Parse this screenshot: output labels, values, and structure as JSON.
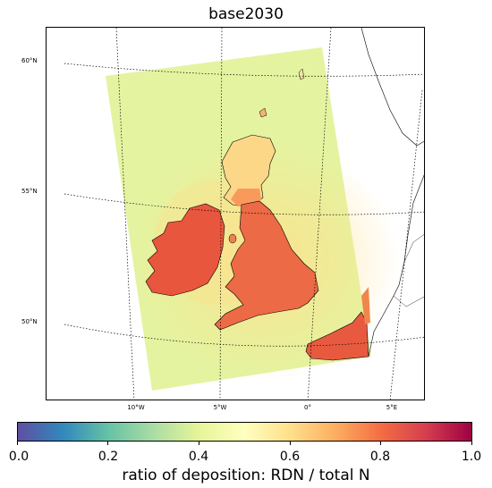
{
  "map": {
    "title": "base2030",
    "lat_labels": [
      "60°N",
      "55°N",
      "50°N"
    ],
    "lon_labels": [
      "10°W",
      "5°W",
      "0°",
      "5°E"
    ]
  },
  "colorbar": {
    "label": "ratio of deposition: RDN / total N",
    "ticks": [
      "0.0",
      "0.2",
      "0.4",
      "0.6",
      "0.8",
      "1.0"
    ],
    "colormap": "Spectral_r",
    "range": [
      0.0,
      1.0
    ],
    "colors": [
      "#5e4fa2",
      "#3288bd",
      "#66c2a5",
      "#abdda4",
      "#e6f598",
      "#ffffbf",
      "#fee08b",
      "#fdae61",
      "#f46d43",
      "#d53e4f",
      "#9e0142"
    ]
  }
}
